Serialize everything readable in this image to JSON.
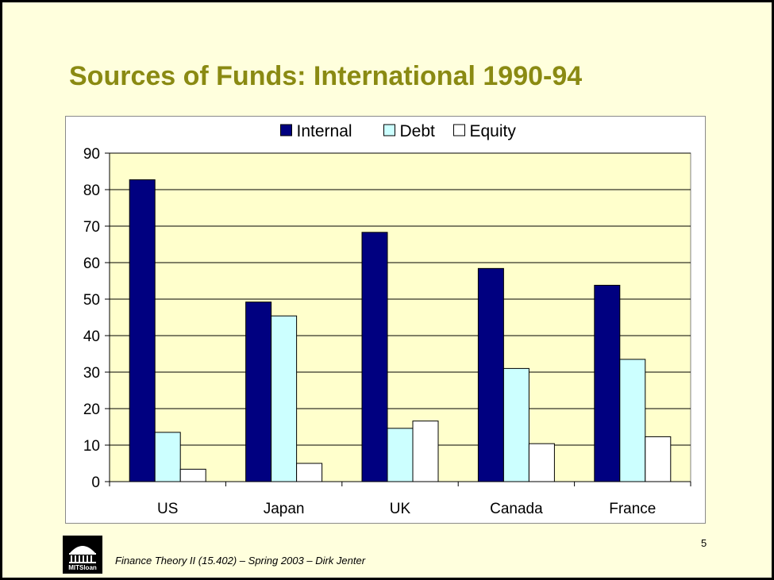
{
  "slide": {
    "title": "Sources of Funds: International 1990-94",
    "page_number": "5",
    "footer": "Finance Theory II (15.402) – Spring 2003 – Dirk Jenter",
    "logo_text": "MITSloan"
  },
  "chart_data": {
    "type": "bar",
    "title": "",
    "xlabel": "",
    "ylabel": "",
    "categories": [
      "US",
      "Japan",
      "UK",
      "Canada",
      "France"
    ],
    "series": [
      {
        "name": "Internal",
        "values": [
          82.7,
          49.2,
          68.3,
          58.4,
          53.8
        ],
        "color": "#000080"
      },
      {
        "name": "Debt",
        "values": [
          13.5,
          45.4,
          14.6,
          31.0,
          33.5
        ],
        "color": "#ccffff"
      },
      {
        "name": "Equity",
        "values": [
          3.4,
          5.0,
          16.6,
          10.4,
          12.3
        ],
        "color": "#ffffff"
      }
    ],
    "ylim": [
      0,
      90
    ],
    "yticks": [
      "0",
      "10",
      "20",
      "30",
      "40",
      "50",
      "60",
      "70",
      "80",
      "90"
    ],
    "grid": true,
    "legend_position": "top-center",
    "plot_background": "#ffffcc"
  }
}
